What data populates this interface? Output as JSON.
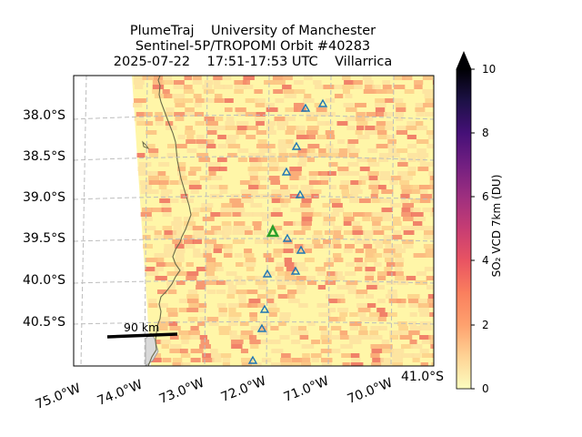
{
  "title": {
    "line1": "PlumeTraj    University of Manchester",
    "line2": "Sentinel-5P/TROPOMI Orbit #40283",
    "line3": "2025-07-22    17:51-17:53 UTC    Villarrica"
  },
  "map": {
    "lat_ticks": [
      "38.0°S",
      "38.5°S",
      "39.0°S",
      "39.5°S",
      "40.0°S",
      "40.5°S"
    ],
    "lon_ticks": [
      "75.0°W",
      "74.0°W",
      "73.0°W",
      "72.0°W",
      "71.0°W",
      "70.0°W"
    ],
    "corner_lat_label": "41.0°S",
    "scale_bar_label": "90 km",
    "volcano": "Villarrica",
    "colors": {
      "swath_background": "#fff6a8",
      "land_edge": "#8a8a8a",
      "coast": "#6b6b4a",
      "grid": "#bdbdbd",
      "volcano_marker": "#2ca02c",
      "station_marker": "#1f77b4"
    }
  },
  "colorbar": {
    "label": "SO₂ VCD 7km (DU)",
    "ticks": [
      "0",
      "2",
      "4",
      "6",
      "8",
      "10"
    ],
    "min": 0,
    "max": 10,
    "extend": "max",
    "colormap": "magma_r"
  }
}
